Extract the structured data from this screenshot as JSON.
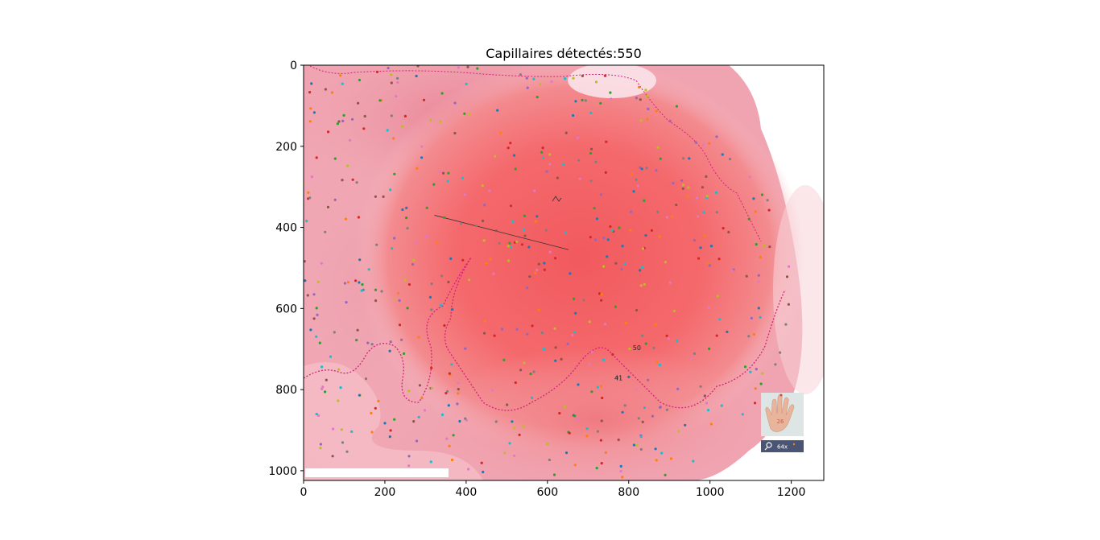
{
  "chart_data": {
    "type": "scatter",
    "title": "Capillaires détectés:550",
    "xlabel": "",
    "ylabel": "",
    "xlim": [
      0,
      1280
    ],
    "ylim": [
      1024,
      0
    ],
    "x_ticks": [
      0,
      200,
      400,
      600,
      800,
      1000,
      1200
    ],
    "y_ticks": [
      0,
      200,
      400,
      600,
      800,
      1000
    ],
    "grid": false,
    "background_image": "pink-red capillaroscopy microscope image of skin",
    "marker_colors": [
      "#1f77b4",
      "#ff7f0e",
      "#2ca02c",
      "#d62728",
      "#9467bd",
      "#8c564b",
      "#e377c2",
      "#7f7f7f",
      "#bcbd22",
      "#17becf"
    ],
    "detected_count": 550,
    "overlay_labels": [
      {
        "text": "50",
        "x": 820,
        "y": 703
      },
      {
        "text": "41",
        "x": 775,
        "y": 777
      }
    ],
    "annotation_line": {
      "x": [
        322,
        652
      ],
      "y": [
        370,
        455
      ]
    },
    "inset": {
      "label_number": "26",
      "zoom_text": "64x"
    }
  }
}
